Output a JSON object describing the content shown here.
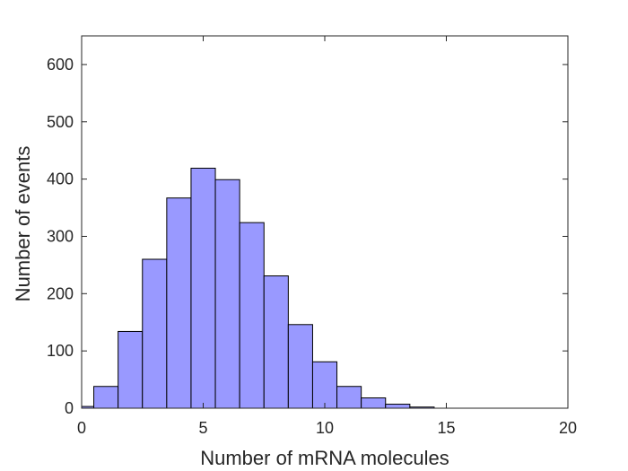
{
  "chart_data": {
    "type": "bar",
    "subtype": "histogram",
    "title": "",
    "xlabel": "Number of mRNA molecules",
    "ylabel": "Number of events",
    "xlim": [
      0,
      20
    ],
    "ylim": [
      0,
      650
    ],
    "xticks": [
      0,
      5,
      10,
      15,
      20
    ],
    "yticks": [
      0,
      100,
      200,
      300,
      400,
      500,
      600
    ],
    "bin_width": 1,
    "bin_centers": [
      0,
      1,
      2,
      3,
      4,
      5,
      6,
      7,
      8,
      9,
      10,
      11,
      12,
      13,
      14
    ],
    "values": [
      3,
      38,
      134,
      260,
      367,
      419,
      399,
      324,
      231,
      146,
      81,
      38,
      18,
      7,
      2
    ],
    "colors": {
      "bar_fill": "#9999ff",
      "bar_edge": "#000000",
      "axis": "#262626"
    },
    "grid": false,
    "legend": "none"
  }
}
